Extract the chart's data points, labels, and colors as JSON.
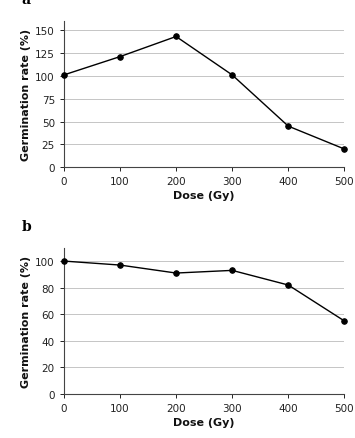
{
  "panel_a": {
    "label": "a",
    "x": [
      0,
      100,
      200,
      300,
      400,
      500
    ],
    "y": [
      101,
      121,
      143,
      101,
      45,
      20
    ],
    "xlabel": "Dose (Gy)",
    "ylabel": "Germination rate (%)",
    "ylim": [
      0,
      160
    ],
    "yticks": [
      0,
      25,
      50,
      75,
      100,
      125,
      150
    ],
    "xlim": [
      0,
      500
    ],
    "xticks": [
      0,
      100,
      200,
      300,
      400,
      500
    ]
  },
  "panel_b": {
    "label": "b",
    "x": [
      0,
      100,
      200,
      300,
      400,
      500
    ],
    "y": [
      100,
      97,
      91,
      93,
      82,
      55
    ],
    "xlabel": "Dose (Gy)",
    "ylabel": "Germination rate (%)",
    "ylim": [
      0,
      110
    ],
    "yticks": [
      0,
      20,
      40,
      60,
      80,
      100
    ],
    "xlim": [
      0,
      500
    ],
    "xticks": [
      0,
      100,
      200,
      300,
      400,
      500
    ]
  },
  "line_color": "#000000",
  "marker": "o",
  "marker_size": 4,
  "marker_face_color": "#000000",
  "line_width": 1.0,
  "grid_color": "#bbbbbb",
  "bg_color": "#ffffff",
  "label_fontsize": 8,
  "tick_fontsize": 7.5,
  "panel_label_fontsize": 10
}
